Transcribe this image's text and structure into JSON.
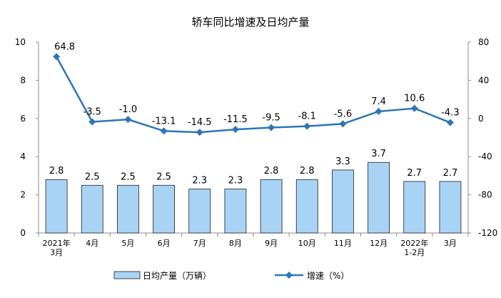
{
  "chart_data": {
    "type": "bar+line",
    "title": "轿车同比增速及日均产量",
    "categories": [
      [
        "2021年",
        "3月"
      ],
      [
        "4月"
      ],
      [
        "5月"
      ],
      [
        "6月"
      ],
      [
        "7月"
      ],
      [
        "8月"
      ],
      [
        "9月"
      ],
      [
        "10月"
      ],
      [
        "11月"
      ],
      [
        "12月"
      ],
      [
        "2022年",
        "1-2月"
      ],
      [
        "3月"
      ]
    ],
    "series": [
      {
        "name": "日均产量（万辆）",
        "type": "bar",
        "axis": "left",
        "values": [
          2.8,
          2.5,
          2.5,
          2.5,
          2.3,
          2.3,
          2.8,
          2.8,
          3.3,
          3.7,
          2.7,
          2.7
        ],
        "labels": [
          "2.8",
          "2.5",
          "2.5",
          "2.5",
          "2.3",
          "2.3",
          "2.8",
          "2.8",
          "3.3",
          "3.7",
          "2.7",
          "2.7"
        ]
      },
      {
        "name": "增速（%）",
        "type": "line",
        "axis": "right",
        "values": [
          64.8,
          -3.5,
          -1.0,
          -13.1,
          -14.5,
          -11.5,
          -9.5,
          -8.1,
          -5.6,
          7.4,
          10.6,
          -4.3
        ],
        "labels": [
          "64.8",
          "-3.5",
          "-1.0",
          "-13.1",
          "-14.5",
          "-11.5",
          "-9.5",
          "-8.1",
          "-5.6",
          "7.4",
          "10.6",
          "-4.3"
        ]
      }
    ],
    "y_left": {
      "min": 0,
      "max": 10,
      "ticks": [
        0,
        2,
        4,
        6,
        8,
        10
      ]
    },
    "y_right": {
      "min": -120,
      "max": 80,
      "ticks": [
        -120,
        -80,
        -40,
        0,
        40,
        80
      ]
    },
    "grid": false,
    "legend": "bottom",
    "colors": {
      "bar_fill": "#a9d3f5",
      "bar_stroke": "#1f1f1f",
      "line": "#2e75b6",
      "axis": "#8c8c8c"
    }
  }
}
